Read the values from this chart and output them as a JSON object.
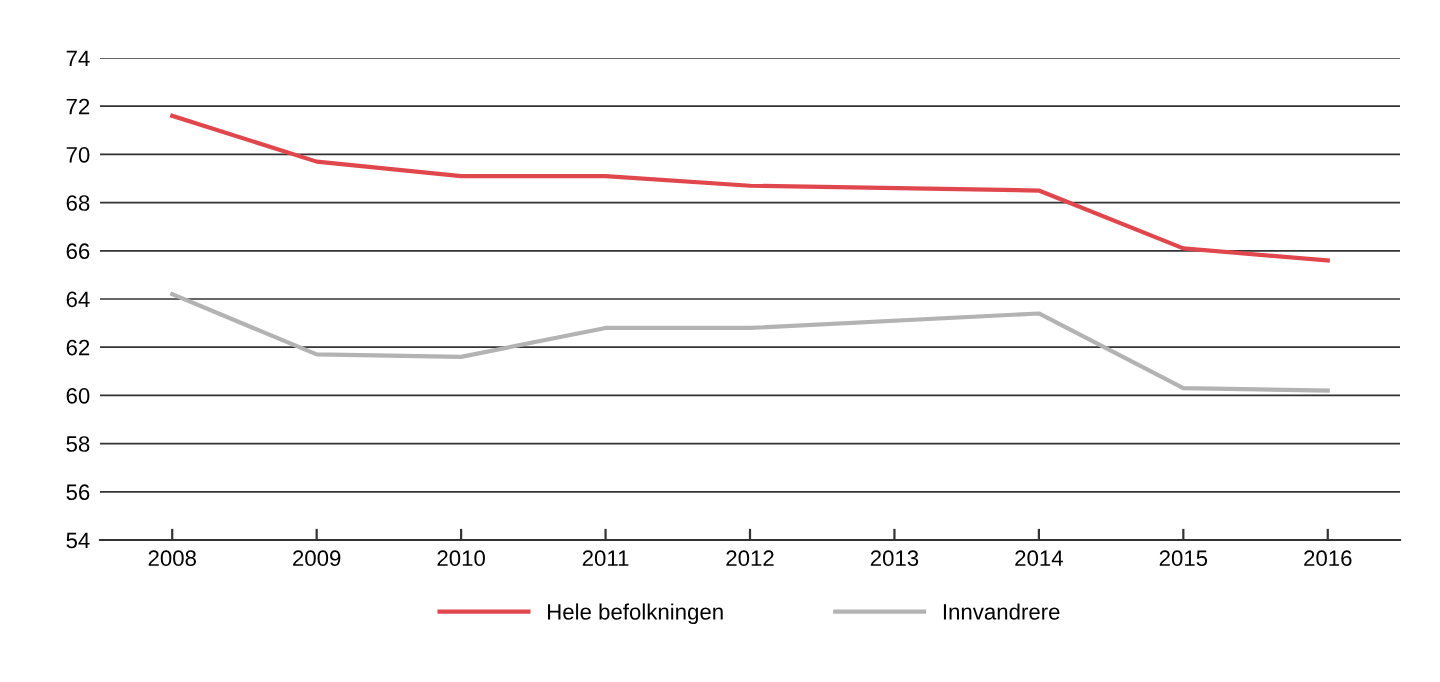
{
  "chart_data": {
    "type": "line",
    "categories": [
      "2008",
      "2009",
      "2010",
      "2011",
      "2012",
      "2013",
      "2014",
      "2015",
      "2016"
    ],
    "series": [
      {
        "name": "Hele befolkningen",
        "color": "#e0474c",
        "values": [
          71.6,
          69.7,
          69.1,
          69.1,
          68.7,
          null,
          68.5,
          66.1,
          65.6
        ]
      },
      {
        "name": "Innvandrere",
        "color": "#b3b3b3",
        "values": [
          64.2,
          61.7,
          61.6,
          62.8,
          62.8,
          null,
          63.4,
          60.3,
          60.2
        ]
      }
    ],
    "ylim": [
      54,
      74
    ],
    "yticks": [
      54,
      56,
      58,
      60,
      62,
      64,
      66,
      68,
      70,
      72,
      74
    ],
    "grid": "y",
    "legend": "bottom",
    "marker": "none",
    "line_style": "solid"
  }
}
